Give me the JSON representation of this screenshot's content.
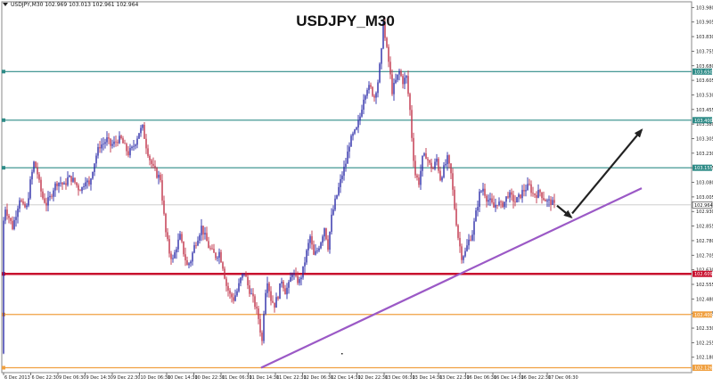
{
  "header": {
    "symbol_info": "USDJPY,M30  102.969 103.013 102.961 102.964"
  },
  "chart_data": {
    "type": "candlestick",
    "title": "USDJPY_M30",
    "current_price": 102.964,
    "y_axis": {
      "range": [
        102.11,
        104.0
      ],
      "ticks": [
        "103.980",
        "103.905",
        "103.830",
        "103.755",
        "103.680",
        "103.605",
        "103.530",
        "103.455",
        "103.380",
        "103.305",
        "103.230",
        "103.155",
        "103.080",
        "103.005",
        "102.930",
        "102.855",
        "102.780",
        "102.705",
        "102.630",
        "102.555",
        "102.480",
        "102.405",
        "102.330",
        "102.255",
        "102.180"
      ]
    },
    "x_axis": {
      "ticks": [
        "6 Dec 2013",
        "6 Dec 22:30",
        "9 Dec 06:30",
        "9 Dec 14:30",
        "9 Dec 22:30",
        "10 Dec 06:30",
        "10 Dec 14:30",
        "10 Dec 22:30",
        "11 Dec 06:30",
        "11 Dec 14:30",
        "11 Dec 22:30",
        "12 Dec 06:30",
        "12 Dec 14:30",
        "12 Dec 22:30",
        "13 Dec 06:30",
        "13 Dec 14:30",
        "13 Dec 22:30",
        "16 Dec 06:30",
        "16 Dec 14:30",
        "16 Dec 22:30",
        "17 Dec 06:30"
      ]
    },
    "levels": [
      {
        "name": "resistance-3",
        "label": "103.650",
        "value": 103.65,
        "color": "#2e8b87"
      },
      {
        "name": "resistance-2",
        "label": "103.400",
        "value": 103.4,
        "color": "#2e8b87"
      },
      {
        "name": "resistance-1",
        "label": "103.155",
        "value": 103.155,
        "color": "#2e8b87"
      },
      {
        "name": "support-1",
        "label": "102.609",
        "value": 102.609,
        "color": "#c8102e"
      },
      {
        "name": "support-2",
        "label": "102.400",
        "value": 102.4,
        "color": "#f0a040"
      },
      {
        "name": "support-3",
        "label": "102.126",
        "value": 102.126,
        "color": "#f0a040"
      }
    ],
    "price_path": [
      [
        0,
        102.2
      ],
      [
        3,
        102.85
      ],
      [
        6,
        102.95
      ],
      [
        10,
        102.9
      ],
      [
        14,
        102.85
      ],
      [
        17,
        102.9
      ],
      [
        22,
        103.0
      ],
      [
        26,
        102.95
      ],
      [
        30,
        102.95
      ],
      [
        34,
        103.08
      ],
      [
        38,
        103.18
      ],
      [
        41,
        103.15
      ],
      [
        45,
        103.05
      ],
      [
        48,
        103.0
      ],
      [
        52,
        102.97
      ],
      [
        56,
        103.0
      ],
      [
        60,
        103.05
      ],
      [
        64,
        103.08
      ],
      [
        68,
        103.08
      ],
      [
        72,
        103.06
      ],
      [
        76,
        103.1
      ],
      [
        80,
        103.1
      ],
      [
        84,
        103.08
      ],
      [
        88,
        103.05
      ],
      [
        92,
        103.05
      ],
      [
        96,
        103.1
      ],
      [
        100,
        103.06
      ],
      [
        104,
        103.15
      ],
      [
        108,
        103.22
      ],
      [
        112,
        103.27
      ],
      [
        116,
        103.28
      ],
      [
        120,
        103.3
      ],
      [
        124,
        103.27
      ],
      [
        128,
        103.28
      ],
      [
        132,
        103.3
      ],
      [
        136,
        103.3
      ],
      [
        140,
        103.26
      ],
      [
        144,
        103.23
      ],
      [
        148,
        103.25
      ],
      [
        152,
        103.29
      ],
      [
        156,
        103.34
      ],
      [
        160,
        103.36
      ],
      [
        164,
        103.27
      ],
      [
        168,
        103.2
      ],
      [
        172,
        103.15
      ],
      [
        176,
        103.12
      ],
      [
        180,
        103.1
      ],
      [
        183,
        102.95
      ],
      [
        186,
        102.82
      ],
      [
        190,
        102.72
      ],
      [
        194,
        102.68
      ],
      [
        198,
        102.75
      ],
      [
        202,
        102.8
      ],
      [
        206,
        102.72
      ],
      [
        210,
        102.65
      ],
      [
        214,
        102.68
      ],
      [
        218,
        102.75
      ],
      [
        222,
        102.8
      ],
      [
        226,
        102.85
      ],
      [
        230,
        102.8
      ],
      [
        234,
        102.75
      ],
      [
        238,
        102.72
      ],
      [
        242,
        102.7
      ],
      [
        246,
        102.72
      ],
      [
        250,
        102.65
      ],
      [
        254,
        102.55
      ],
      [
        258,
        102.5
      ],
      [
        262,
        102.48
      ],
      [
        266,
        102.52
      ],
      [
        270,
        102.58
      ],
      [
        274,
        102.62
      ],
      [
        278,
        102.55
      ],
      [
        282,
        102.5
      ],
      [
        286,
        102.45
      ],
      [
        290,
        102.38
      ],
      [
        294,
        102.26
      ],
      [
        297,
        102.5
      ],
      [
        300,
        102.58
      ],
      [
        304,
        102.48
      ],
      [
        308,
        102.45
      ],
      [
        312,
        102.5
      ],
      [
        316,
        102.58
      ],
      [
        320,
        102.52
      ],
      [
        324,
        102.55
      ],
      [
        328,
        102.62
      ],
      [
        332,
        102.58
      ],
      [
        336,
        102.57
      ],
      [
        340,
        102.63
      ],
      [
        344,
        102.72
      ],
      [
        348,
        102.8
      ],
      [
        352,
        102.7
      ],
      [
        356,
        102.73
      ],
      [
        360,
        102.78
      ],
      [
        364,
        102.85
      ],
      [
        368,
        102.75
      ],
      [
        372,
        102.9
      ],
      [
        376,
        102.98
      ],
      [
        380,
        103.05
      ],
      [
        384,
        103.12
      ],
      [
        388,
        103.18
      ],
      [
        392,
        103.28
      ],
      [
        396,
        103.32
      ],
      [
        400,
        103.35
      ],
      [
        404,
        103.42
      ],
      [
        408,
        103.52
      ],
      [
        412,
        103.57
      ],
      [
        416,
        103.56
      ],
      [
        420,
        103.52
      ],
      [
        424,
        103.6
      ],
      [
        428,
        103.75
      ],
      [
        430,
        103.92
      ],
      [
        432,
        103.82
      ],
      [
        436,
        103.7
      ],
      [
        440,
        103.55
      ],
      [
        444,
        103.6
      ],
      [
        448,
        103.65
      ],
      [
        452,
        103.6
      ],
      [
        456,
        103.62
      ],
      [
        460,
        103.45
      ],
      [
        463,
        103.25
      ],
      [
        466,
        103.12
      ],
      [
        470,
        103.08
      ],
      [
        474,
        103.2
      ],
      [
        478,
        103.22
      ],
      [
        482,
        103.17
      ],
      [
        486,
        103.15
      ],
      [
        490,
        103.2
      ],
      [
        494,
        103.1
      ],
      [
        498,
        103.15
      ],
      [
        502,
        103.2
      ],
      [
        506,
        103.12
      ],
      [
        510,
        102.95
      ],
      [
        514,
        102.8
      ],
      [
        518,
        102.7
      ],
      [
        522,
        102.72
      ],
      [
        526,
        102.78
      ],
      [
        530,
        102.82
      ],
      [
        534,
        102.92
      ],
      [
        538,
        103.02
      ],
      [
        542,
        103.05
      ],
      [
        546,
        103.0
      ],
      [
        550,
        102.98
      ],
      [
        554,
        102.95
      ],
      [
        558,
        102.98
      ],
      [
        562,
        102.96
      ],
      [
        566,
        102.98
      ],
      [
        570,
        103.02
      ],
      [
        574,
        103.0
      ],
      [
        578,
        102.98
      ],
      [
        582,
        103.0
      ],
      [
        586,
        103.03
      ],
      [
        590,
        103.05
      ],
      [
        594,
        103.06
      ],
      [
        598,
        103.02
      ],
      [
        602,
        103.02
      ],
      [
        606,
        103.03
      ],
      [
        610,
        103.0
      ],
      [
        614,
        102.98
      ],
      [
        618,
        102.98
      ],
      [
        622,
        102.96
      ]
    ],
    "trendline": {
      "from": [
        293,
        102.126
      ],
      "to": [
        720,
        103.05
      ],
      "color": "#9b59c6"
    },
    "arrows": [
      {
        "name": "pullback-arrow",
        "from": [
          625,
          102.96
        ],
        "to": [
          641,
          102.9
        ],
        "color": "#222222"
      },
      {
        "name": "projection-arrow",
        "from": [
          642,
          102.92
        ],
        "to": [
          720,
          103.35
        ],
        "color": "#222222"
      }
    ]
  }
}
